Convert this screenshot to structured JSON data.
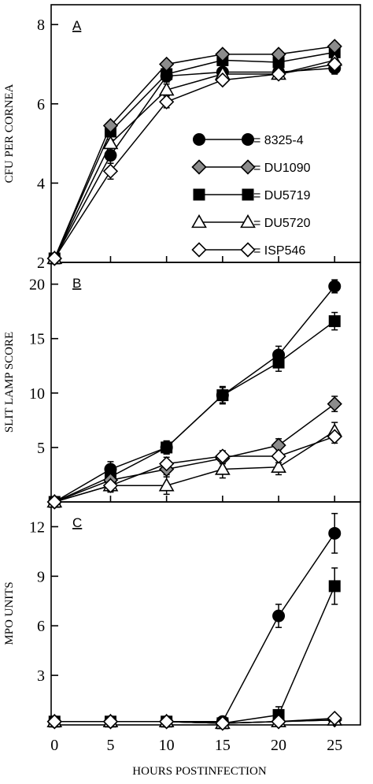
{
  "chart_data": {
    "type": "line",
    "x": [
      0,
      5,
      10,
      15,
      20,
      25
    ],
    "xlabel": "HOURS POSTINFECTION",
    "xticks": [
      "0",
      "5",
      "10",
      "15",
      "20",
      "25"
    ],
    "legend": [
      {
        "key": "8325-4",
        "text": "= 8325-4",
        "marker": "circle"
      },
      {
        "key": "DU1090",
        "text": "= DU1090",
        "marker": "diamond-gray"
      },
      {
        "key": "DU5719",
        "text": "= DU5719",
        "marker": "square"
      },
      {
        "key": "DU5720",
        "text": "= DU5720",
        "marker": "triangle"
      },
      {
        "key": "ISP546",
        "text": "= ISP546",
        "marker": "diamond-open"
      }
    ],
    "panels": [
      {
        "label": "A",
        "ylabel": "CFU PER CORNEA",
        "ylim": [
          2,
          8.5
        ],
        "yticks": [
          2,
          4,
          6,
          8
        ],
        "series": [
          {
            "key": "8325-4",
            "values": [
              2.1,
              4.7,
              6.7,
              6.8,
              6.8,
              6.9
            ],
            "err": [
              0,
              0.2,
              0.15,
              0.1,
              0.1,
              0.15
            ]
          },
          {
            "key": "DU1090",
            "values": [
              2.1,
              5.45,
              7.0,
              7.25,
              7.25,
              7.45
            ],
            "err": [
              0,
              0.1,
              0.1,
              0.1,
              0.1,
              0.1
            ]
          },
          {
            "key": "DU5719",
            "values": [
              2.1,
              5.3,
              6.75,
              7.1,
              7.05,
              7.3
            ],
            "err": [
              0,
              0.1,
              0.1,
              0.1,
              0.1,
              0.1
            ]
          },
          {
            "key": "DU5720",
            "values": [
              2.1,
              5.0,
              6.35,
              6.75,
              6.75,
              7.1
            ],
            "err": [
              0,
              0.1,
              0.15,
              0.1,
              0.1,
              0.1
            ]
          },
          {
            "key": "ISP546",
            "values": [
              2.1,
              4.3,
              6.05,
              6.6,
              6.75,
              7.0
            ],
            "err": [
              0,
              0.2,
              0.15,
              0.1,
              0.1,
              0.1
            ]
          }
        ]
      },
      {
        "label": "B",
        "ylabel": "SLIT LAMP SCORE",
        "ylim": [
          0,
          22
        ],
        "yticks": [
          5,
          10,
          15,
          20
        ],
        "series": [
          {
            "key": "8325-4",
            "values": [
              0,
              3.0,
              5.0,
              9.8,
              13.5,
              19.8
            ],
            "err": [
              0,
              0.7,
              0.6,
              0.8,
              0.8,
              0.6
            ]
          },
          {
            "key": "DU1090",
            "values": [
              0,
              2.0,
              3.0,
              4.0,
              5.2,
              9.0
            ],
            "err": [
              0,
              0.5,
              0.5,
              0.5,
              0.6,
              0.7
            ]
          },
          {
            "key": "DU5719",
            "values": [
              0,
              2.3,
              5.0,
              9.8,
              12.8,
              16.6
            ],
            "err": [
              0,
              0.6,
              0.6,
              0.7,
              0.8,
              0.8
            ]
          },
          {
            "key": "DU5720",
            "values": [
              0,
              1.5,
              1.5,
              3.0,
              3.2,
              6.5
            ],
            "err": [
              0,
              0.6,
              0.8,
              0.8,
              0.7,
              0.8
            ]
          },
          {
            "key": "ISP546",
            "values": [
              0,
              1.5,
              3.5,
              4.2,
              4.2,
              6.0
            ],
            "err": [
              0,
              0.5,
              0.6,
              0.5,
              0.6,
              0.6
            ]
          }
        ]
      },
      {
        "label": "C",
        "ylabel": "MPO UNITS",
        "ylim": [
          0,
          13.5
        ],
        "yticks": [
          3,
          6,
          9,
          12
        ],
        "series": [
          {
            "key": "8325-4",
            "values": [
              0.2,
              0.2,
              0.2,
              0.2,
              6.6,
              11.6
            ],
            "err": [
              0,
              0.3,
              0.3,
              0.3,
              0.7,
              1.2
            ]
          },
          {
            "key": "DU1090",
            "values": [
              0.2,
              0.2,
              0.2,
              0.1,
              0.2,
              0.3
            ],
            "err": [
              0,
              0.2,
              0.2,
              0.2,
              0.2,
              0.2
            ]
          },
          {
            "key": "DU5719",
            "values": [
              0.2,
              0.2,
              0.2,
              0.1,
              0.6,
              8.4
            ],
            "err": [
              0,
              0.3,
              0.3,
              0.3,
              0.5,
              1.1
            ]
          },
          {
            "key": "DU5720",
            "values": [
              0.2,
              0.2,
              0.2,
              0.1,
              0.2,
              0.3
            ],
            "err": [
              0,
              0.2,
              0.2,
              0.2,
              0.2,
              0.2
            ]
          },
          {
            "key": "ISP546",
            "values": [
              0.2,
              0.2,
              0.2,
              0.1,
              0.2,
              0.4
            ],
            "err": [
              0,
              0.2,
              0.2,
              0.2,
              0.2,
              0.2
            ]
          }
        ]
      }
    ]
  },
  "colors": {
    "gray_fill": "#8c8c8c",
    "ink": "#000000",
    "background": "#ffffff"
  }
}
